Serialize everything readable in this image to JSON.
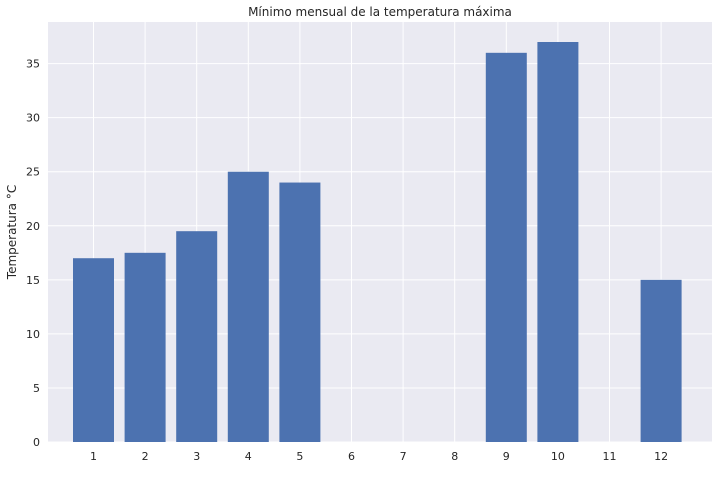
{
  "chart_data": {
    "type": "bar",
    "title": "Mínimo mensual de la temperatura máxima",
    "xlabel": "",
    "ylabel": "Temperatura °C",
    "categories": [
      "1",
      "2",
      "3",
      "4",
      "5",
      "6",
      "7",
      "8",
      "9",
      "10",
      "11",
      "12"
    ],
    "values": [
      17,
      17.5,
      19.5,
      25,
      24,
      0,
      0,
      0,
      36,
      37,
      0,
      15
    ],
    "ylim": [
      0,
      38.85
    ],
    "yticks": [
      0,
      5,
      10,
      15,
      20,
      25,
      30,
      35
    ],
    "grid": true,
    "colors": {
      "bar": "#4c72b0",
      "plot_background": "#eaeaf2",
      "grid": "#ffffff",
      "text": "#262626"
    }
  }
}
